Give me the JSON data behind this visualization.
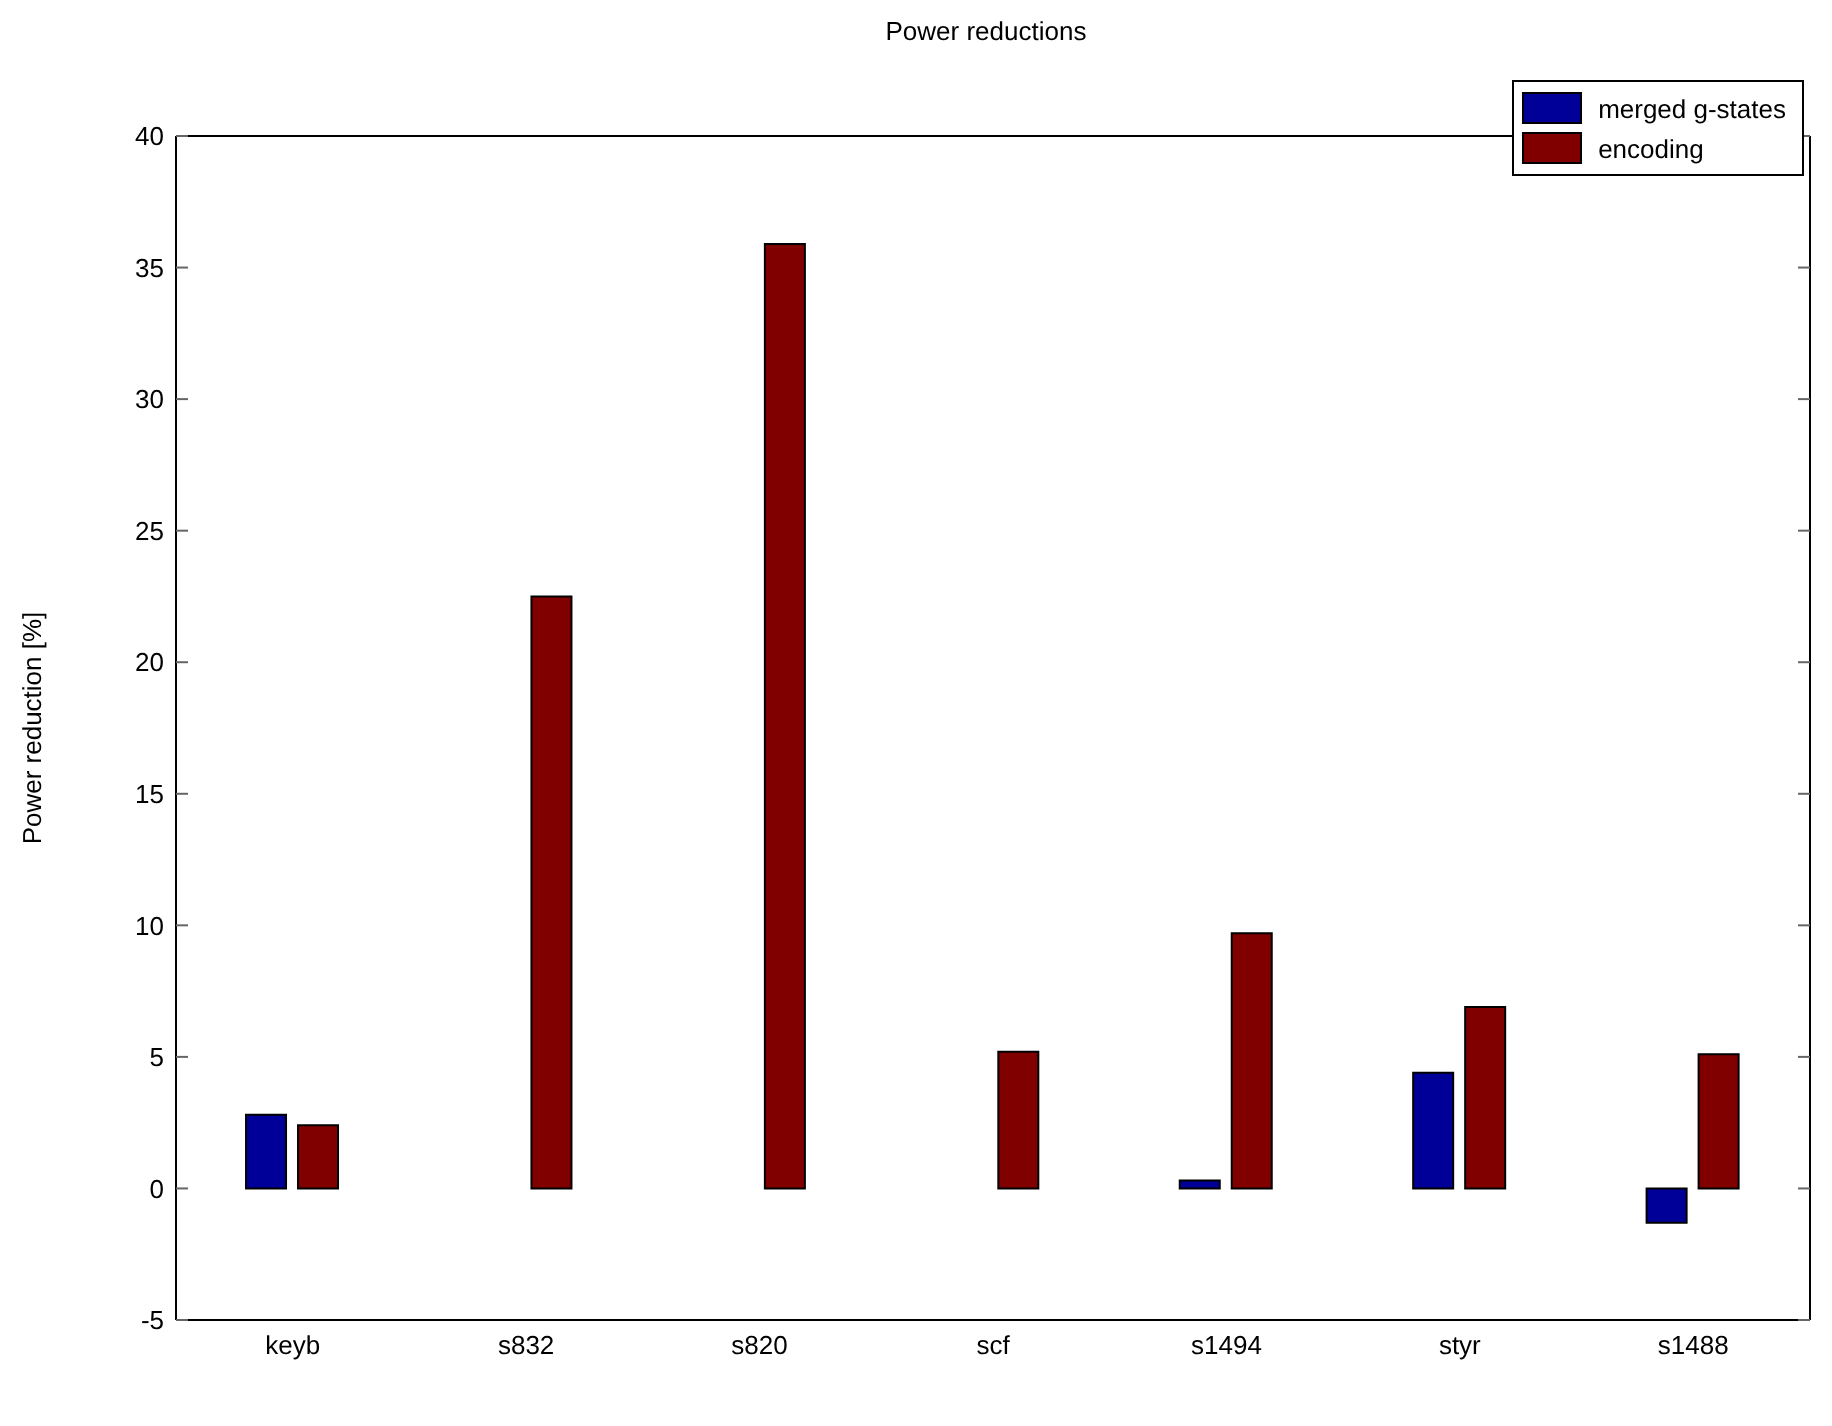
{
  "chart_data": {
    "type": "bar",
    "title": "Power reductions",
    "ylabel": "Power reduction [%]",
    "categories": [
      "keyb",
      "s832",
      "s820",
      "scf",
      "s1494",
      "styr",
      "s1488"
    ],
    "series": [
      {
        "name": "merged g-states",
        "color": "#000099",
        "values": [
          2.8,
          0,
          0,
          0,
          0.3,
          4.4,
          -1.3
        ]
      },
      {
        "name": "encoding",
        "color": "#800000",
        "values": [
          2.4,
          22.5,
          35.9,
          5.2,
          9.7,
          6.9,
          5.1
        ]
      }
    ],
    "ylim": [
      -5,
      40
    ],
    "yticks": [
      -5,
      0,
      5,
      10,
      15,
      20,
      25,
      30,
      35,
      40
    ],
    "legend": "top right"
  }
}
